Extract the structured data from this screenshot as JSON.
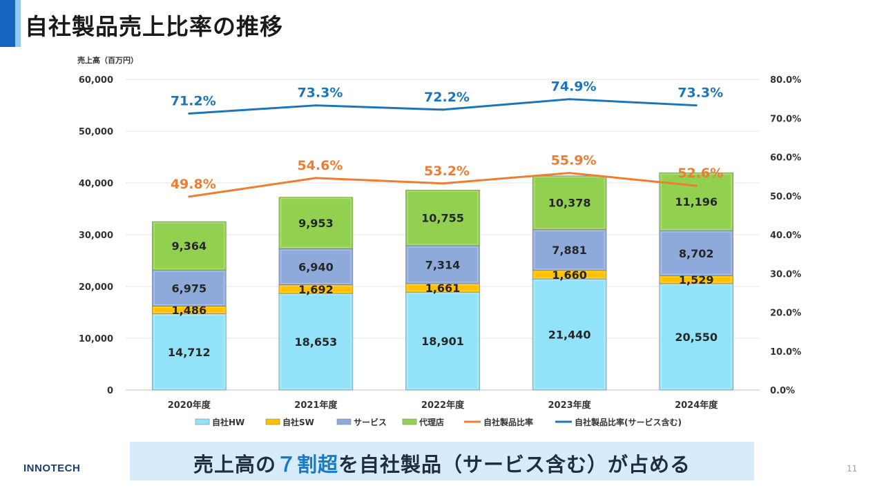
{
  "slide": {
    "title": "自社製品売上比率の推移",
    "footer_parts": [
      "売上高の",
      "７割超",
      "を自社製品（サービス含む）が占める"
    ],
    "logo_text": "INNOTECH",
    "page_number": "11"
  },
  "colors": {
    "hw": "#92e3fa",
    "sw": "#ffc000",
    "service": "#8eaadb",
    "agency": "#92d050",
    "line_own": "#ed7d31",
    "line_own_service": "#1b75bb"
  },
  "chart_data": {
    "type": "bar",
    "stacked": true,
    "y_axis_title": "売上高（百万円）",
    "categories": [
      "2020年度",
      "2021年度",
      "2022年度",
      "2023年度",
      "2024年度"
    ],
    "ylim": [
      0,
      60000
    ],
    "y_ticks": [
      "0",
      "10,000",
      "20,000",
      "30,000",
      "40,000",
      "50,000",
      "60,000"
    ],
    "y2lim": [
      0,
      80
    ],
    "y2_ticks": [
      "0.0%",
      "10.0%",
      "20.0%",
      "30.0%",
      "40.0%",
      "50.0%",
      "60.0%",
      "70.0%",
      "80.0%"
    ],
    "grid": true,
    "legend_position": "bottom",
    "series": [
      {
        "name": "自社HW",
        "type": "bar",
        "color_key": "hw",
        "values": [
          14712,
          18653,
          18901,
          21440,
          20550
        ],
        "labels": [
          "14,712",
          "18,653",
          "18,901",
          "21,440",
          "20,550"
        ]
      },
      {
        "name": "自社SW",
        "type": "bar",
        "color_key": "sw",
        "values": [
          1486,
          1692,
          1661,
          1660,
          1529
        ],
        "labels": [
          "1,486",
          "1,692",
          "1,661",
          "1,660",
          "1,529"
        ]
      },
      {
        "name": "サービス",
        "type": "bar",
        "color_key": "service",
        "values": [
          6975,
          6940,
          7314,
          7881,
          8702
        ],
        "labels": [
          "6,975",
          "6,940",
          "7,314",
          "7,881",
          "8,702"
        ]
      },
      {
        "name": "代理店",
        "type": "bar",
        "color_key": "agency",
        "values": [
          9364,
          9953,
          10755,
          10378,
          11196
        ],
        "labels": [
          "9,364",
          "9,953",
          "10,755",
          "10,378",
          "11,196"
        ]
      },
      {
        "name": "自社製品比率",
        "type": "line",
        "axis": "right",
        "color_key": "line_own",
        "values": [
          49.8,
          54.6,
          53.2,
          55.9,
          52.6
        ],
        "labels": [
          "49.8%",
          "54.6%",
          "53.2%",
          "55.9%",
          "52.6%"
        ]
      },
      {
        "name": "自社製品比率(サービス含む)",
        "type": "line",
        "axis": "right",
        "color_key": "line_own_service",
        "values": [
          71.2,
          73.3,
          72.2,
          74.9,
          73.3
        ],
        "labels": [
          "71.2%",
          "73.3%",
          "72.2%",
          "74.9%",
          "73.3%"
        ]
      }
    ]
  }
}
